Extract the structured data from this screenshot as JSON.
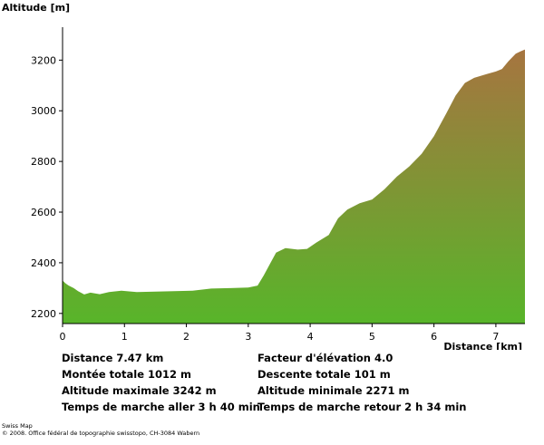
{
  "chart_data": {
    "type": "area",
    "ylabel": "Altitude [m]",
    "xlabel": "Distance [km]",
    "xlim": [
      0,
      7.47
    ],
    "ylim": [
      2160,
      3330
    ],
    "xticks": [
      0,
      1,
      2,
      3,
      4,
      5,
      6,
      7
    ],
    "yticks": [
      2200,
      2400,
      2600,
      2800,
      3000,
      3200
    ],
    "colors": {
      "low": "#58b52a",
      "high": "#a77440",
      "frame": "#000000"
    },
    "profile": [
      {
        "x": 0.0,
        "y": 2330
      },
      {
        "x": 0.05,
        "y": 2318
      },
      {
        "x": 0.1,
        "y": 2310
      },
      {
        "x": 0.18,
        "y": 2300
      },
      {
        "x": 0.25,
        "y": 2288
      },
      {
        "x": 0.35,
        "y": 2275
      },
      {
        "x": 0.45,
        "y": 2282
      },
      {
        "x": 0.6,
        "y": 2276
      },
      {
        "x": 0.75,
        "y": 2284
      },
      {
        "x": 0.95,
        "y": 2290
      },
      {
        "x": 1.2,
        "y": 2284
      },
      {
        "x": 1.5,
        "y": 2286
      },
      {
        "x": 1.8,
        "y": 2288
      },
      {
        "x": 2.1,
        "y": 2290
      },
      {
        "x": 2.4,
        "y": 2298
      },
      {
        "x": 2.7,
        "y": 2300
      },
      {
        "x": 3.0,
        "y": 2302
      },
      {
        "x": 3.15,
        "y": 2310
      },
      {
        "x": 3.25,
        "y": 2350
      },
      {
        "x": 3.35,
        "y": 2395
      },
      {
        "x": 3.45,
        "y": 2440
      },
      {
        "x": 3.6,
        "y": 2458
      },
      {
        "x": 3.8,
        "y": 2452
      },
      {
        "x": 3.95,
        "y": 2455
      },
      {
        "x": 4.1,
        "y": 2480
      },
      {
        "x": 4.3,
        "y": 2510
      },
      {
        "x": 4.45,
        "y": 2575
      },
      {
        "x": 4.6,
        "y": 2610
      },
      {
        "x": 4.8,
        "y": 2635
      },
      {
        "x": 5.0,
        "y": 2650
      },
      {
        "x": 5.2,
        "y": 2690
      },
      {
        "x": 5.4,
        "y": 2740
      },
      {
        "x": 5.6,
        "y": 2780
      },
      {
        "x": 5.8,
        "y": 2830
      },
      {
        "x": 6.0,
        "y": 2900
      },
      {
        "x": 6.2,
        "y": 2990
      },
      {
        "x": 6.35,
        "y": 3060
      },
      {
        "x": 6.5,
        "y": 3110
      },
      {
        "x": 6.65,
        "y": 3130
      },
      {
        "x": 6.85,
        "y": 3145
      },
      {
        "x": 7.0,
        "y": 3155
      },
      {
        "x": 7.1,
        "y": 3165
      },
      {
        "x": 7.2,
        "y": 3195
      },
      {
        "x": 7.32,
        "y": 3225
      },
      {
        "x": 7.4,
        "y": 3235
      },
      {
        "x": 7.47,
        "y": 3242
      }
    ]
  },
  "stats": {
    "distance": "Distance 7.47 km",
    "ascent": "Montée totale  1012 m",
    "max_alt": "Altitude maximale  3242 m",
    "time_out": "Temps de marche aller  3 h 40 min",
    "elevation_factor": "Facteur d'élévation 4.0",
    "descent": "Descente totale  101 m",
    "min_alt": "Altitude minimale  2271 m",
    "time_back": "Temps de marche retour  2 h 34 min"
  },
  "footer": {
    "line1": "Swiss Map",
    "line2": "© 2008. Office fédéral de topographie swisstopo, CH-3084 Wabern"
  }
}
